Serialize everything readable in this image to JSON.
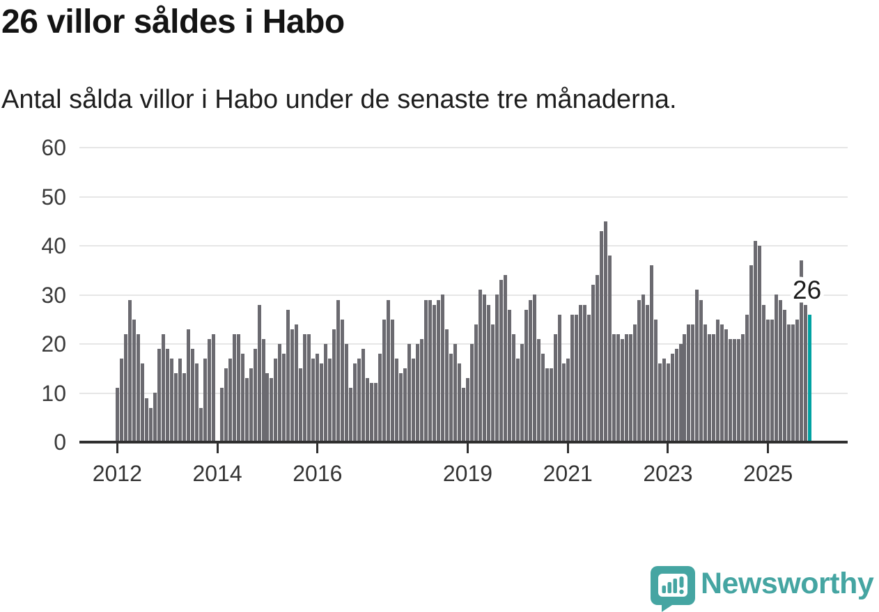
{
  "header": {
    "title": "26 villor såldes i Habo",
    "subtitle": "Antal sålda villor i Habo under de senaste tre månaderna."
  },
  "chart_data": {
    "type": "bar",
    "title": "26 villor såldes i Habo",
    "subtitle": "Antal sålda villor i Habo under de senaste tre månaderna.",
    "ylabel": "",
    "xlabel": "",
    "ylim": [
      0,
      60
    ],
    "y_ticks": [
      0,
      10,
      20,
      30,
      40,
      50,
      60
    ],
    "grid": "horizontal",
    "start_month": "2012-01",
    "x_ticks": [
      {
        "label": "2012",
        "month_index": 0
      },
      {
        "label": "2014",
        "month_index": 24
      },
      {
        "label": "2016",
        "month_index": 48
      },
      {
        "label": "2019",
        "month_index": 84
      },
      {
        "label": "2021",
        "month_index": 108
      },
      {
        "label": "2023",
        "month_index": 132
      },
      {
        "label": "2025",
        "month_index": 156
      }
    ],
    "values": [
      11,
      17,
      22,
      29,
      25,
      22,
      16,
      9,
      7,
      10,
      19,
      22,
      19,
      17,
      14,
      17,
      14,
      23,
      19,
      16,
      7,
      17,
      21,
      22,
      0,
      11,
      15,
      17,
      22,
      22,
      18,
      13,
      15,
      19,
      28,
      21,
      14,
      13,
      17,
      20,
      18,
      27,
      23,
      24,
      15,
      22,
      22,
      17,
      18,
      16,
      20,
      17,
      23,
      29,
      25,
      20,
      11,
      16,
      17,
      19,
      13,
      12,
      12,
      18,
      25,
      29,
      25,
      17,
      14,
      15,
      20,
      17,
      20,
      21,
      29,
      29,
      28,
      29,
      30,
      23,
      18,
      20,
      16,
      11,
      13,
      20,
      24,
      31,
      30,
      28,
      24,
      30,
      33,
      34,
      27,
      22,
      17,
      20,
      27,
      29,
      30,
      21,
      18,
      15,
      15,
      22,
      26,
      16,
      17,
      26,
      26,
      28,
      28,
      26,
      32,
      34,
      43,
      45,
      38,
      22,
      22,
      21,
      22,
      22,
      24,
      29,
      30,
      28,
      36,
      25,
      16,
      17,
      16,
      18,
      19,
      20,
      22,
      24,
      24,
      31,
      29,
      24,
      22,
      22,
      25,
      24,
      23,
      21,
      21,
      21,
      22,
      26,
      36,
      41,
      40,
      28,
      25,
      25,
      30,
      29,
      27,
      24,
      24,
      25,
      37,
      28,
      26
    ],
    "highlight_last_value": 26,
    "last_value_label": "26",
    "colors": {
      "bar": "#6b6a70",
      "highlight": "#00a2a2",
      "gridline": "#e6e6e6",
      "axis": "#2f2f2f"
    }
  },
  "footer": {
    "brand": "Newsworthy"
  }
}
